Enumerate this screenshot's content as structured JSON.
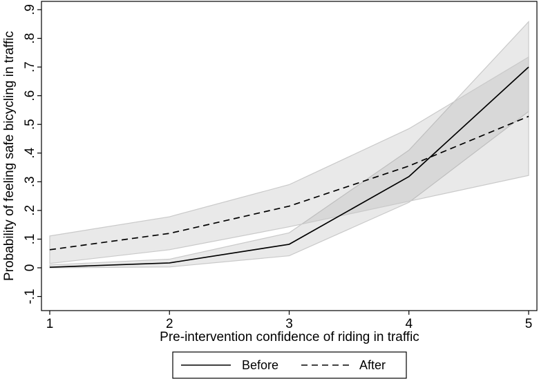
{
  "chart_data": {
    "type": "line",
    "title": "",
    "xlabel": "Pre-intervention confidence of riding in traffic",
    "ylabel": "Probability of feeling safe bicycling in traffic",
    "x": [
      1,
      2,
      3,
      4,
      5
    ],
    "xticks": [
      "1",
      "2",
      "3",
      "4",
      "5"
    ],
    "yticks": [
      "-.1",
      "0",
      ".1",
      ".2",
      ".3",
      ".4",
      ".5",
      ".6",
      ".7",
      ".8",
      ".9"
    ],
    "ytick_values": [
      -0.1,
      0,
      0.1,
      0.2,
      0.3,
      0.4,
      0.5,
      0.6,
      0.7,
      0.8,
      0.9
    ],
    "xlim": [
      1,
      5
    ],
    "ylim": [
      -0.1,
      0.9
    ],
    "grid": false,
    "legend_position": "bottom",
    "series": [
      {
        "name": "Before",
        "style": "solid",
        "values": [
          0.002,
          0.017,
          0.082,
          0.318,
          0.7
        ],
        "ci_lower": [
          0.0,
          0.003,
          0.042,
          0.228,
          0.545
        ],
        "ci_upper": [
          0.01,
          0.03,
          0.122,
          0.41,
          0.858
        ]
      },
      {
        "name": "After",
        "style": "dashed",
        "values": [
          0.063,
          0.12,
          0.215,
          0.355,
          0.528
        ],
        "ci_lower": [
          0.015,
          0.063,
          0.143,
          0.232,
          0.322
        ],
        "ci_upper": [
          0.111,
          0.178,
          0.29,
          0.485,
          0.735
        ]
      }
    ],
    "colors": {
      "line": "#000000",
      "band_fill": "#9a9a9a",
      "band_edge": "#c9c9c9"
    }
  },
  "legend": {
    "items": [
      {
        "label": "Before"
      },
      {
        "label": "After"
      }
    ]
  }
}
